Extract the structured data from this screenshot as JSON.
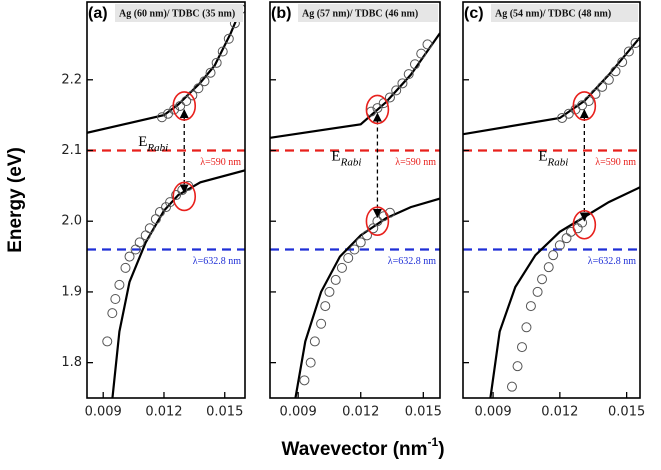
{
  "figure": {
    "ylabel": "Energy (eV)",
    "xlabel": "Wavevector (nm",
    "xlabel_sup": "-1",
    "xlabel_tail": ")"
  },
  "chart_data": [
    {
      "type": "line",
      "panel_label": "(a)",
      "title": "Ag (60 nm)/ TDBC (35 nm)",
      "xlim": [
        0.0082,
        0.016
      ],
      "ylim": [
        1.75,
        2.31
      ],
      "xticks": [
        0.009,
        0.012,
        0.015
      ],
      "yticks": [
        1.8,
        1.9,
        {
          "value": 2,
          "label": "2.0"
        },
        2.1,
        2.2
      ],
      "show_ytick_labels": true,
      "series": [
        {
          "style": "line",
          "color": "#000000",
          "x": [
            0.0082,
            0.012,
            0.0127,
            0.0138,
            0.0145,
            0.0153,
            0.0158
          ],
          "values": [
            2.125,
            2.15,
            2.165,
            2.196,
            2.22,
            2.266,
            2.3
          ]
        },
        {
          "style": "line",
          "color": "#000000",
          "x": [
            0.00945,
            0.0098,
            0.0103,
            0.0111,
            0.012,
            0.0127,
            0.0138,
            0.016
          ],
          "values": [
            1.748,
            1.844,
            1.914,
            1.97,
            2.015,
            2.037,
            2.055,
            2.072
          ]
        },
        {
          "style": "markers",
          "color": "#555555",
          "x": [
            0.0119,
            0.0122,
            0.0125,
            0.0128,
            0.0131,
            0.0134,
            0.0137,
            0.014,
            0.0143,
            0.0146,
            0.0149,
            0.0152,
            0.0155,
            0.0158
          ],
          "values": [
            2.147,
            2.152,
            2.158,
            2.163,
            2.17,
            2.178,
            2.188,
            2.198,
            2.21,
            2.224,
            2.24,
            2.258,
            2.28,
            2.3
          ]
        },
        {
          "style": "markers",
          "color": "#555555",
          "x": [
            0.0092,
            0.00945,
            0.0096,
            0.0098,
            0.0101,
            0.0103,
            0.0106,
            0.0108,
            0.0111,
            0.0113,
            0.0116,
            0.0118,
            0.0121,
            0.0123,
            0.0126,
            0.0129,
            0.0132
          ],
          "values": [
            1.83,
            1.87,
            1.89,
            1.91,
            1.934,
            1.95,
            1.96,
            1.97,
            1.98,
            1.99,
            2.003,
            2.013,
            2.02,
            2.027,
            2.037,
            2.044,
            2.05
          ]
        }
      ],
      "reference_lines": [
        {
          "value": 2.1,
          "color": "#e8201c",
          "label": "λ=590 nm"
        },
        {
          "value": 1.96,
          "color": "#1f2fd6",
          "label": "λ=632.8 nm"
        }
      ],
      "rabi": {
        "x": 0.013,
        "upper": 2.163,
        "lower": 2.035,
        "color": "#e8201c",
        "label": "E",
        "label_sub": "Rabi"
      }
    },
    {
      "type": "line",
      "panel_label": "(b)",
      "title": "Ag (57 nm)/ TDBC (46 nm)",
      "xlim": [
        0.00765,
        0.0158
      ],
      "ylim": [
        1.75,
        2.31
      ],
      "xticks": [
        0.009,
        0.012,
        0.015
      ],
      "yticks": [
        1.8,
        1.9,
        {
          "value": 2,
          "label": "2.0"
        },
        2.1,
        2.2
      ],
      "show_ytick_labels": false,
      "series": [
        {
          "style": "line",
          "color": "#000000",
          "x": [
            0.00765,
            0.012,
            0.0132,
            0.0144,
            0.0158
          ],
          "values": [
            2.118,
            2.137,
            2.168,
            2.207,
            2.266
          ]
        },
        {
          "style": "line",
          "color": "#000000",
          "x": [
            0.00886,
            0.00934,
            0.0101,
            0.011,
            0.012,
            0.0132,
            0.0144,
            0.0158
          ],
          "values": [
            1.748,
            1.83,
            1.9,
            1.95,
            1.98,
            2.004,
            2.02,
            2.032
          ]
        },
        {
          "style": "markers",
          "color": "#555555",
          "x": [
            0.0125,
            0.0128,
            0.0131,
            0.0134,
            0.0137,
            0.014,
            0.0143,
            0.0146,
            0.0149,
            0.0152
          ],
          "values": [
            2.155,
            2.16,
            2.167,
            2.175,
            2.185,
            2.195,
            2.208,
            2.222,
            2.237,
            2.25
          ]
        },
        {
          "style": "markers",
          "color": "#555555",
          "x": [
            0.0093,
            0.0096,
            0.0098,
            0.0101,
            0.0103,
            0.0105,
            0.0108,
            0.0111,
            0.0114,
            0.0117,
            0.012,
            0.0123,
            0.0126,
            0.0128,
            0.0131,
            0.0134
          ],
          "values": [
            1.775,
            1.8,
            1.83,
            1.855,
            1.88,
            1.9,
            1.917,
            1.934,
            1.948,
            1.96,
            1.97,
            1.98,
            1.99,
            2.0,
            2.007,
            2.012
          ]
        }
      ],
      "reference_lines": [
        {
          "value": 2.1,
          "color": "#e8201c",
          "label": "λ=590 nm"
        },
        {
          "value": 1.96,
          "color": "#1f2fd6",
          "label": "λ=632.8 nm"
        }
      ],
      "rabi": {
        "x": 0.0128,
        "upper": 2.158,
        "lower": 2.0,
        "color": "#e8201c",
        "label": "E",
        "label_sub": "Rabi"
      }
    },
    {
      "type": "line",
      "panel_label": "(c)",
      "title": "Ag (54 nm)/ TDBC (48 nm)",
      "xlim": [
        0.00765,
        0.0156
      ],
      "ylim": [
        1.75,
        2.31
      ],
      "xticks": [
        0.009,
        0.012,
        0.015
      ],
      "yticks": [
        1.8,
        1.9,
        {
          "value": 2,
          "label": "2.0"
        },
        2.1,
        2.2
      ],
      "show_ytick_labels": false,
      "series": [
        {
          "style": "line",
          "color": "#000000",
          "x": [
            0.00765,
            0.012,
            0.0131,
            0.0142,
            0.0156
          ],
          "values": [
            2.123,
            2.146,
            2.17,
            2.207,
            2.26
          ]
        },
        {
          "style": "line",
          "color": "#000000",
          "x": [
            0.00887,
            0.0093,
            0.01,
            0.0109,
            0.012,
            0.0131,
            0.0142,
            0.0156
          ],
          "values": [
            1.748,
            1.844,
            1.907,
            1.952,
            1.985,
            2.006,
            2.027,
            2.048
          ]
        },
        {
          "style": "markers",
          "color": "#555555",
          "x": [
            0.0121,
            0.0124,
            0.0127,
            0.013,
            0.0133,
            0.0136,
            0.0139,
            0.0142,
            0.0145,
            0.0148,
            0.0151,
            0.0154
          ],
          "values": [
            2.146,
            2.152,
            2.158,
            2.164,
            2.17,
            2.18,
            2.19,
            2.2,
            2.212,
            2.225,
            2.24,
            2.252
          ]
        },
        {
          "style": "markers",
          "color": "#555555",
          "x": [
            0.00985,
            0.0101,
            0.0103,
            0.0105,
            0.0107,
            0.011,
            0.0112,
            0.0115,
            0.0117,
            0.012,
            0.0123,
            0.0125,
            0.0128,
            0.013
          ],
          "values": [
            1.766,
            1.795,
            1.822,
            1.85,
            1.88,
            1.9,
            1.918,
            1.935,
            1.952,
            1.966,
            1.976,
            1.985,
            1.99,
            1.998
          ]
        }
      ],
      "reference_lines": [
        {
          "value": 2.1,
          "color": "#e8201c",
          "label": "λ=590 nm"
        },
        {
          "value": 1.96,
          "color": "#1f2fd6",
          "label": "λ=632.8 nm"
        }
      ],
      "rabi": {
        "x": 0.0131,
        "upper": 2.163,
        "lower": 1.995,
        "color": "#e8201c",
        "label": "E",
        "label_sub": "Rabi"
      }
    }
  ]
}
